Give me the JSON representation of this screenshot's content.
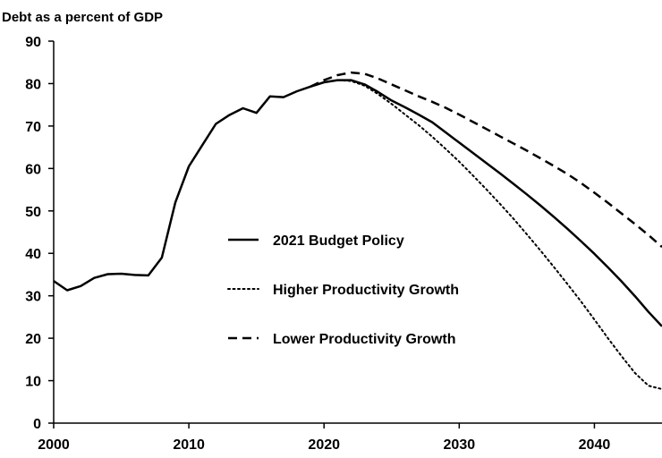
{
  "chart_data": {
    "type": "line",
    "title": "Debt as a percent of GDP",
    "xlabel": "",
    "ylabel": "",
    "xlim": [
      2000,
      2045
    ],
    "ylim": [
      0,
      90
    ],
    "xticks": [
      2000,
      2010,
      2020,
      2030,
      2040
    ],
    "yticks": [
      0,
      10,
      20,
      30,
      40,
      50,
      60,
      70,
      80,
      90
    ],
    "grid": false,
    "legend_position": "center",
    "series": [
      {
        "name": "2021 Budget Policy",
        "style": "solid",
        "color": "#000000",
        "x": [
          2000,
          2001,
          2002,
          2003,
          2004,
          2005,
          2006,
          2007,
          2008,
          2009,
          2010,
          2011,
          2012,
          2013,
          2014,
          2015,
          2016,
          2017,
          2018,
          2019,
          2020,
          2021,
          2022,
          2023,
          2024,
          2025,
          2026,
          2027,
          2028,
          2029,
          2030,
          2031,
          2032,
          2033,
          2034,
          2035,
          2036,
          2037,
          2038,
          2039,
          2040,
          2041,
          2042,
          2043,
          2044,
          2045
        ],
        "y": [
          33.5,
          31.3,
          32.3,
          34.2,
          35.1,
          35.2,
          34.9,
          34.8,
          39.0,
          52.0,
          60.5,
          65.5,
          70.5,
          72.6,
          74.2,
          73.1,
          77.0,
          76.8,
          78.2,
          79.3,
          80.3,
          80.8,
          80.8,
          79.8,
          78.0,
          76.0,
          74.4,
          72.7,
          70.9,
          68.5,
          66.1,
          63.7,
          61.3,
          58.9,
          56.4,
          53.9,
          51.3,
          48.6,
          45.8,
          42.9,
          39.9,
          36.7,
          33.4,
          29.9,
          26.2,
          22.8
        ]
      },
      {
        "name": "Higher Productivity Growth",
        "style": "dotted",
        "color": "#000000",
        "x": [
          2020,
          2021,
          2022,
          2023,
          2024,
          2025,
          2026,
          2027,
          2028,
          2029,
          2030,
          2031,
          2032,
          2033,
          2034,
          2035,
          2036,
          2037,
          2038,
          2039,
          2040,
          2041,
          2042,
          2043,
          2044,
          2045
        ],
        "y": [
          80.3,
          80.8,
          80.6,
          79.5,
          77.5,
          75.2,
          72.7,
          70.2,
          67.5,
          64.6,
          61.6,
          58.4,
          55.1,
          51.7,
          48.2,
          44.5,
          40.7,
          36.8,
          32.8,
          28.7,
          24.4,
          20.0,
          15.8,
          11.8,
          8.8,
          8.0
        ]
      },
      {
        "name": "Lower Productivity Growth",
        "style": "dashed",
        "color": "#000000",
        "x": [
          2019,
          2020,
          2021,
          2022,
          2023,
          2024,
          2025,
          2026,
          2027,
          2028,
          2029,
          2030,
          2031,
          2032,
          2033,
          2034,
          2035,
          2036,
          2037,
          2038,
          2039,
          2040,
          2041,
          2042,
          2043,
          2044,
          2045
        ],
        "y": [
          79.3,
          80.8,
          82.0,
          82.6,
          82.3,
          81.2,
          79.8,
          78.4,
          77.0,
          75.7,
          74.3,
          72.7,
          71.0,
          69.3,
          67.6,
          65.9,
          64.2,
          62.4,
          60.6,
          58.7,
          56.6,
          54.3,
          51.9,
          49.4,
          46.9,
          44.3,
          41.5
        ]
      }
    ]
  }
}
